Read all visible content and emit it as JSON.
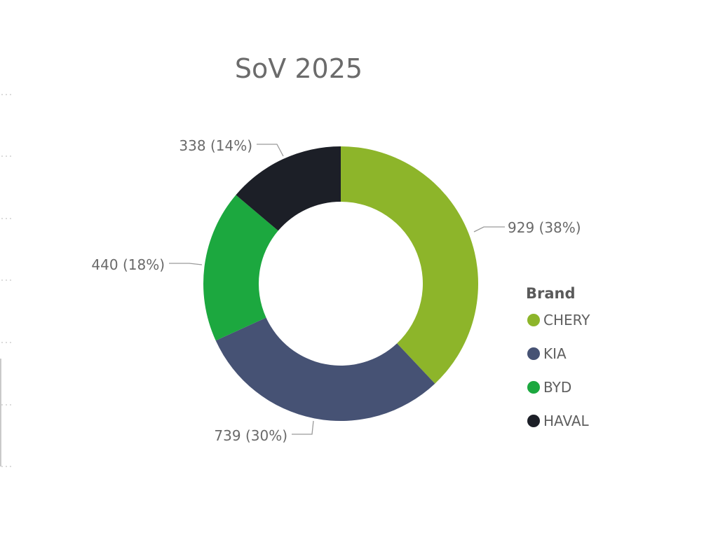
{
  "chart_data": {
    "type": "pie",
    "title": "SoV 2025",
    "legend_title": "Brand",
    "legend_position": "right",
    "categories": [
      "CHERY",
      "KIA",
      "BYD",
      "HAVAL"
    ],
    "values": [
      929,
      739,
      440,
      338
    ],
    "percent_labels": [
      "38%",
      "30%",
      "18%",
      "14%"
    ],
    "data_labels": [
      "929 (38%)",
      "739 (30%)",
      "440 (18%)",
      "338 (14%)"
    ],
    "colors": [
      "#8db52a",
      "#465274",
      "#1ca83f",
      "#1c1f27"
    ]
  }
}
